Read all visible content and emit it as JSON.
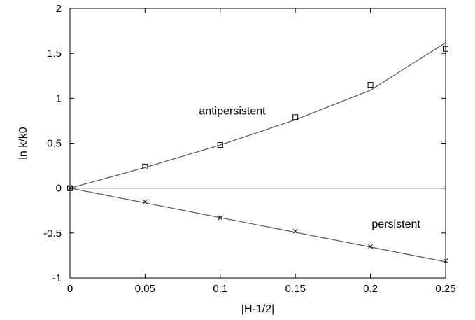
{
  "chart_data": {
    "type": "scatter",
    "title": "",
    "xlabel": "|H-1/2|",
    "ylabel": "ln k/k0",
    "xlim": [
      0,
      0.25
    ],
    "ylim": [
      -1,
      2
    ],
    "x_ticks": [
      0,
      0.05,
      0.1,
      0.15,
      0.2,
      0.25
    ],
    "y_ticks": [
      -1,
      -0.5,
      0,
      0.5,
      1,
      1.5,
      2
    ],
    "x_tick_labels": [
      "0",
      "0.05",
      "0.1",
      "0.15",
      "0.2",
      "0.25"
    ],
    "y_tick_labels": [
      "-1",
      "-0.5",
      "0",
      "0.5",
      "1",
      "1.5",
      "2"
    ],
    "grid": false,
    "series": [
      {
        "marker": "square",
        "x": [
          0,
          0.05,
          0.1,
          0.15,
          0.2,
          0.25
        ],
        "y": [
          0,
          0.24,
          0.48,
          0.79,
          1.15,
          1.55
        ]
      },
      {
        "marker": "cross",
        "x": [
          0,
          0.05,
          0.1,
          0.15,
          0.2,
          0.25
        ],
        "y": [
          0,
          -0.15,
          -0.33,
          -0.48,
          -0.65,
          -0.81
        ]
      }
    ],
    "fit_curves": [
      {
        "x": [
          0,
          0.05,
          0.1,
          0.15,
          0.2,
          0.25
        ],
        "y": [
          0,
          0.23,
          0.48,
          0.76,
          1.09,
          1.62
        ]
      },
      {
        "x": [
          0,
          0.25
        ],
        "y": [
          0,
          -0.82
        ]
      },
      {
        "x": [
          0,
          0.25
        ],
        "y": [
          0,
          0
        ]
      }
    ],
    "annotations": [
      {
        "text": "antipersistent",
        "x": 0.108,
        "y": 0.82
      },
      {
        "text": "persistent",
        "x": 0.217,
        "y": -0.44
      }
    ]
  }
}
